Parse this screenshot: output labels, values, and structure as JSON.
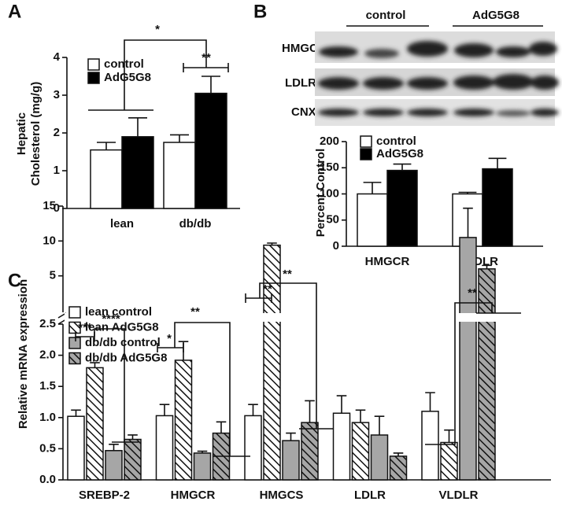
{
  "chart_data": [
    {
      "type": "bar",
      "panel": "A",
      "ylabel": [
        "Hepatic",
        "Cholesterol (mg/g)"
      ],
      "categories": [
        "lean",
        "db/db"
      ],
      "series": [
        {
          "name": "control",
          "color": "#ffffff",
          "values": [
            1.55,
            1.75
          ],
          "errors": [
            0.2,
            0.2
          ]
        },
        {
          "name": "AdG5G8",
          "color": "#000000",
          "values": [
            1.9,
            3.05
          ],
          "errors": [
            0.5,
            0.45
          ]
        }
      ],
      "ylim": [
        0,
        4
      ],
      "yticks": [
        0,
        1,
        2,
        3,
        4
      ],
      "annotations": [
        "*",
        "**"
      ]
    },
    {
      "type": "bar",
      "panel": "B",
      "blot": {
        "groups": [
          "control",
          "AdG5G8"
        ],
        "rows": [
          "HMGCR",
          "LDLR",
          "CNX"
        ]
      },
      "ylabel": "Percent Control",
      "categories": [
        "HMGCR",
        "LDLR"
      ],
      "series": [
        {
          "name": "control",
          "color": "#ffffff",
          "values": [
            100,
            100
          ],
          "errors": [
            22,
            3
          ]
        },
        {
          "name": "AdG5G8",
          "color": "#000000",
          "values": [
            145,
            148
          ],
          "errors": [
            12,
            20
          ]
        }
      ],
      "ylim": [
        0,
        200
      ],
      "yticks": [
        0,
        50,
        100,
        150,
        200
      ]
    },
    {
      "type": "bar",
      "panel": "C",
      "ylabel": "Relative mRNA expression",
      "categories": [
        "SREBP-2",
        "HMGCR",
        "HMGCS",
        "LDLR",
        "VLDLR"
      ],
      "series": [
        {
          "name": "lean control",
          "color": "#ffffff",
          "hatch": false,
          "values": [
            1.02,
            1.03,
            1.03,
            1.07,
            1.1
          ],
          "errors": [
            0.1,
            0.18,
            0.18,
            0.28,
            0.3
          ]
        },
        {
          "name": "lean AdG5G8",
          "color": "#ffffff",
          "hatch": true,
          "values": [
            1.8,
            1.92,
            9.4,
            0.92,
            0.6
          ],
          "errors": [
            0.08,
            0.3,
            0.3,
            0.2,
            0.2
          ]
        },
        {
          "name": "db/db control",
          "color": "#a6a6a6",
          "hatch": false,
          "values": [
            0.47,
            0.43,
            0.63,
            0.72,
            10.5
          ],
          "errors": [
            0.1,
            0.03,
            0.12,
            0.3,
            4.2
          ]
        },
        {
          "name": "db/db AdG5G8",
          "color": "#a6a6a6",
          "hatch": true,
          "values": [
            0.65,
            0.75,
            0.92,
            0.38,
            6.0
          ],
          "errors": [
            0.07,
            0.18,
            0.35,
            0.05,
            0.5
          ]
        }
      ],
      "ylim": [
        0,
        15
      ],
      "y_break": 2.5,
      "yticks": [
        {
          "value": 0,
          "label": "0.0"
        },
        0.5,
        {
          "value": 1,
          "label": "1.0"
        },
        1.5,
        {
          "value": 2,
          "label": "2.0"
        },
        2.5,
        5,
        10,
        15
      ],
      "annotations": [
        "***",
        "****",
        "*",
        "**",
        "**",
        "**",
        "**"
      ]
    }
  ]
}
